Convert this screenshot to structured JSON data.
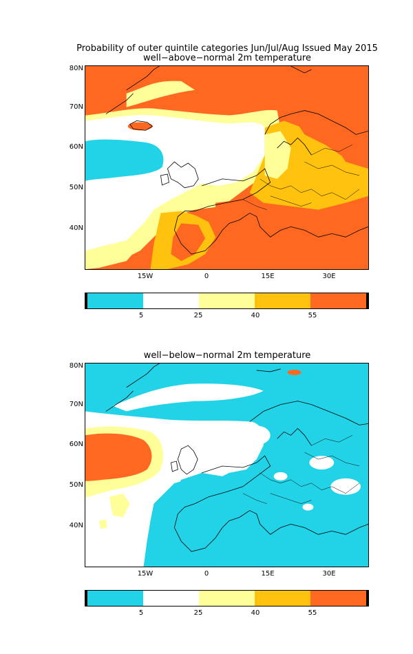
{
  "titles": {
    "main": "Probability of outer quintile categories Jun/Jul/Aug Issued May 2015",
    "panel_top": "well−above−normal 2m temperature",
    "panel_bottom": "well−below−normal 2m temperature"
  },
  "axes": {
    "lat_labels": [
      "80N",
      "70N",
      "60N",
      "50N",
      "40N"
    ],
    "lon_labels": [
      "15W",
      "0",
      "15E",
      "30E"
    ]
  },
  "colorbar": {
    "labels": [
      "5",
      "25",
      "40",
      "55"
    ],
    "colors": [
      "#22d2e6",
      "#ffffff",
      "#ffff99",
      "#ffc20e",
      "#ff6820"
    ]
  }
}
